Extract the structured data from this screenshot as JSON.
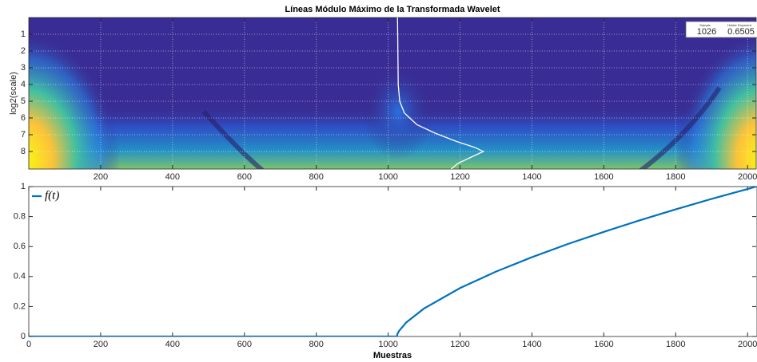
{
  "chart_data": [
    {
      "type": "heatmap",
      "title": "Líneas Módulo Máximo de la Transformada Wavelet",
      "ylabel": "log2(scale)",
      "xlim": [
        0,
        2024
      ],
      "xticks": [
        200,
        400,
        600,
        800,
        1000,
        1200,
        1400,
        1600,
        1800,
        2000
      ],
      "ylim": [
        0,
        9.05
      ],
      "yticks": [
        1,
        2,
        3,
        4,
        5,
        6,
        7,
        8
      ],
      "ydir": "reverse",
      "grid": true,
      "series": [
        {
          "color": "#ffffff",
          "x": [
            1026,
            1027,
            1028,
            1032,
            1045,
            1080,
            1130,
            1190,
            1240,
            1265,
            1235,
            1195,
            1175
          ],
          "values": [
            0,
            2,
            4,
            5,
            5.7,
            6.4,
            6.9,
            7.4,
            7.75,
            8,
            8.3,
            8.7,
            9.05
          ]
        }
      ],
      "datatip": {
        "labels": [
          "Sample",
          "Holder Exponent"
        ],
        "values": [
          1026,
          0.6505
        ]
      }
    },
    {
      "type": "line",
      "xlabel": "Muestras",
      "xlim": [
        0,
        2024
      ],
      "xticks": [
        0,
        200,
        400,
        600,
        800,
        1000,
        1200,
        1400,
        1600,
        1800,
        2000
      ],
      "ylim": [
        0,
        1
      ],
      "yticks": [
        0,
        0.2,
        0.4,
        0.6,
        0.8,
        1
      ],
      "grid": false,
      "legend": "top-left",
      "series": [
        {
          "name": "f(t)",
          "color": "#0072bd",
          "x": [
            0,
            1024,
            1026,
            1030,
            1050,
            1100,
            1200,
            1300,
            1400,
            1500,
            1600,
            1700,
            1800,
            1900,
            2000,
            2024
          ],
          "values": [
            0,
            0,
            0.018,
            0.036,
            0.093,
            0.187,
            0.323,
            0.433,
            0.529,
            0.617,
            0.698,
            0.775,
            0.848,
            0.918,
            0.984,
            1
          ]
        }
      ]
    }
  ]
}
